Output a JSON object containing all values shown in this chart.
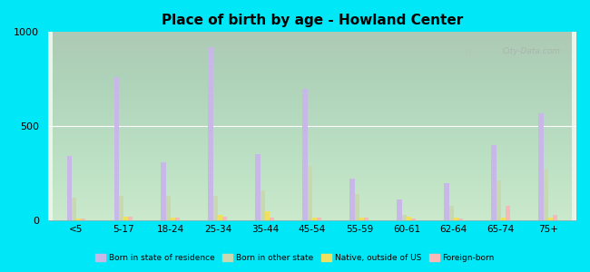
{
  "title": "Place of birth by age - Howland Center",
  "categories": [
    "<5",
    "5-17",
    "18-24",
    "25-34",
    "35-44",
    "45-54",
    "55-59",
    "60-61",
    "62-64",
    "65-74",
    "75+"
  ],
  "series": {
    "Born in state of residence": [
      340,
      760,
      310,
      920,
      350,
      700,
      220,
      110,
      200,
      400,
      570
    ],
    "Born in other state": [
      120,
      130,
      130,
      130,
      160,
      290,
      140,
      30,
      80,
      210,
      270
    ],
    "Native, outside of US": [
      10,
      20,
      15,
      30,
      50,
      15,
      15,
      20,
      15,
      15,
      15
    ],
    "Foreign-born": [
      10,
      20,
      15,
      20,
      15,
      15,
      15,
      10,
      10,
      80,
      30
    ]
  },
  "series_colors": {
    "Born in state of residence": "#c8b8e8",
    "Born in other state": "#c8d8b0",
    "Native, outside of US": "#f0e060",
    "Foreign-born": "#f8b8b8"
  },
  "ylim": [
    0,
    1000
  ],
  "yticks": [
    0,
    500,
    1000
  ],
  "bar_width": 0.1,
  "legend_labels": [
    "Born in state of residence",
    "Born in other state",
    "Native, outside of US",
    "Foreign-born"
  ],
  "watermark": "City-Data.com",
  "figure_bg": "#00e8f8",
  "plot_bg_top": "#f5fef5",
  "plot_bg_bottom": "#d8f0d8"
}
